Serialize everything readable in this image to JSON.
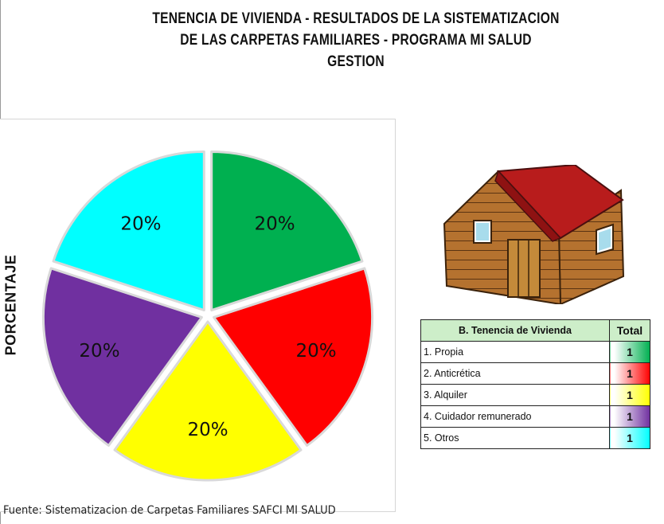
{
  "chart_data": {
    "type": "pie",
    "title_lines": [
      "TENENCIA DE VIVIENDA - RESULTADOS DE LA SISTEMATIZACION",
      "DE LAS CARPETAS FAMILIARES - PROGRAMA MI SALUD",
      "GESTION"
    ],
    "ylabel": "PORCENTAJE",
    "exploded": true,
    "series": [
      {
        "category": "1. Propia",
        "value": 1,
        "percent_label": "20%",
        "color": "#00b050"
      },
      {
        "category": "2. Anticrética",
        "value": 1,
        "percent_label": "20%",
        "color": "#ff0000"
      },
      {
        "category": "3. Alquiler",
        "value": 1,
        "percent_label": "20%",
        "color": "#ffff00"
      },
      {
        "category": "4. Cuidador remunerado",
        "value": 1,
        "percent_label": "20%",
        "color": "#7030a0"
      },
      {
        "category": "5. Otros",
        "value": 1,
        "percent_label": "20%",
        "color": "#00ffff"
      }
    ]
  },
  "table": {
    "header_category": "B. Tenencia de Vivienda",
    "header_total": "Total",
    "rows": [
      {
        "label": "1. Propia",
        "total": "1",
        "color": "#00b050"
      },
      {
        "label": "2. Anticrética",
        "total": "1",
        "color": "#ff0000"
      },
      {
        "label": "3. Alquiler",
        "total": "1",
        "color": "#ffff00"
      },
      {
        "label": "4. Cuidador remunerado",
        "total": "1",
        "color": "#7030a0"
      },
      {
        "label": "5. Otros",
        "total": "1",
        "color": "#00ffff"
      }
    ]
  },
  "illustration": {
    "icon": "house-icon"
  },
  "source": "Fuente: Sistematizacion de Carpetas Familiares SAFCI MI SALUD"
}
